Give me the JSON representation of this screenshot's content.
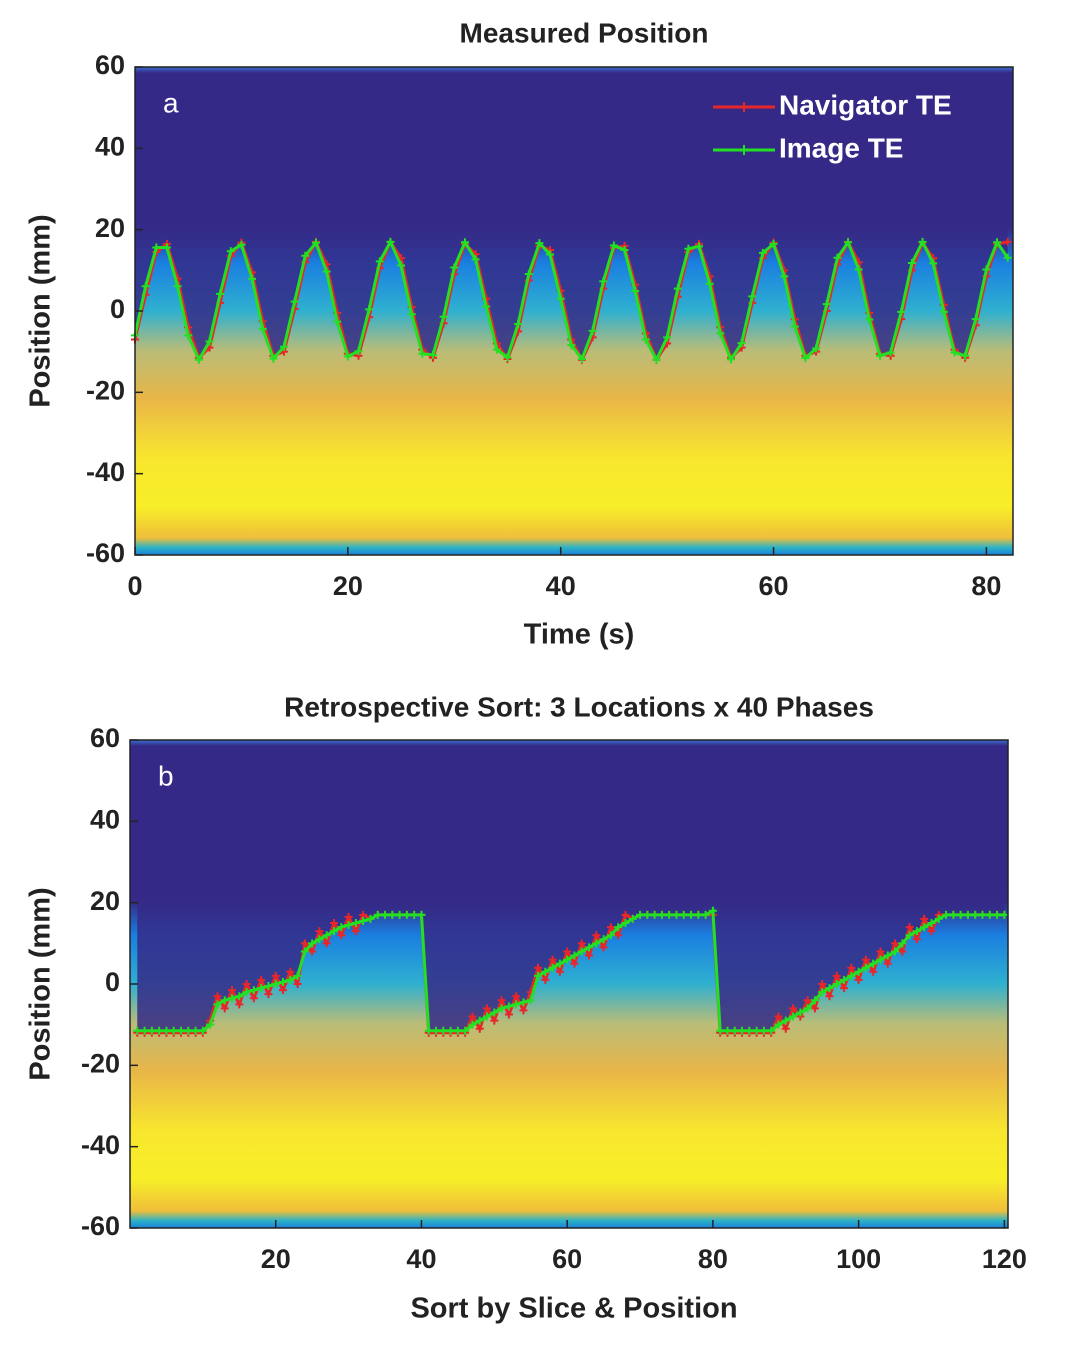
{
  "chart_data": [
    {
      "type": "line",
      "title": "Measured Position",
      "xlabel": "Time (s)",
      "ylabel": "Position (mm)",
      "annotation": "a",
      "x": [
        0,
        1,
        2,
        3,
        4,
        5,
        6,
        7,
        8,
        9,
        10,
        11,
        12,
        13,
        14,
        15,
        16,
        17,
        18,
        19,
        20,
        21,
        22,
        23,
        24,
        25,
        26,
        27,
        28,
        29,
        30,
        31,
        32,
        33,
        34,
        35,
        36,
        37,
        38,
        39,
        40,
        41,
        42,
        43,
        44,
        45,
        46,
        47,
        48,
        49,
        50,
        51,
        52,
        53,
        54,
        55,
        56,
        57,
        58,
        59,
        60,
        61,
        62,
        63,
        64,
        65,
        66,
        67,
        68,
        69,
        70,
        71,
        72,
        73,
        74,
        75,
        76,
        77,
        78,
        79,
        80,
        81,
        82
      ],
      "series": [
        {
          "name": "Navigator TE",
          "color": "#e8262a",
          "values": [
            -7,
            4,
            14.5,
            16.5,
            8,
            -4,
            -11.5,
            -9,
            2,
            13.5,
            16.8,
            9.5,
            -2.5,
            -11,
            -10,
            0.5,
            12,
            17,
            11.5,
            -0.5,
            -10.5,
            -11,
            -1.5,
            10.5,
            17,
            13,
            1,
            -9.5,
            -11.5,
            -3,
            9,
            16.5,
            14,
            3,
            -8,
            -11.8,
            -5,
            7.5,
            16,
            15,
            5,
            -7,
            -12,
            -6.5,
            5.5,
            15.5,
            16,
            6.5,
            -5.5,
            -12,
            -8,
            3.5,
            14.5,
            16.5,
            8.5,
            -4,
            -11.5,
            -9,
            2,
            13,
            16.8,
            10,
            -2,
            -11,
            -10,
            0,
            11.5,
            17,
            12,
            -0.5,
            -10.5,
            -11,
            -2,
            10,
            16.8,
            13,
            1.5,
            -9.5,
            -11.5,
            -3.5,
            8.5,
            16.5,
            17
          ]
        },
        {
          "name": "Image TE",
          "color": "#22e022",
          "values": [
            -6.0,
            6.1,
            15.6,
            15.6,
            6.1,
            -6.0,
            -12.0,
            -7.5,
            4.2,
            14.7,
            16.3,
            7.9,
            -4.4,
            -11.7,
            -8.8,
            2.3,
            13.6,
            16.8,
            9.7,
            -2.6,
            -11.2,
            -9.9,
            0.4,
            12.2,
            17.0,
            11.2,
            -0.8,
            -10.5,
            -10.8,
            -1.4,
            10.7,
            16.9,
            12.7,
            1.1,
            -9.5,
            -11.4,
            -3.2,
            9.1,
            16.7,
            13.9,
            3.0,
            -8.4,
            -11.8,
            -4.9,
            7.3,
            16.1,
            15.0,
            4.9,
            -7.0,
            -12.0,
            -6.5,
            5.5,
            15.3,
            15.9,
            6.7,
            -5.5,
            -11.9,
            -7.9,
            3.6,
            14.3,
            16.5,
            8.5,
            -3.8,
            -11.6,
            -9.2,
            1.7,
            13.1,
            16.9,
            10.2,
            -2.1,
            -11.0,
            -10.2,
            -0.2,
            11.8,
            17.0,
            11.7,
            -0.2,
            -10.2,
            -11.0,
            -2.0,
            10.2,
            16.9,
            13.1
          ]
        }
      ],
      "xlim": [
        0,
        82.5
      ],
      "xticks": [
        0,
        20,
        40,
        60,
        80
      ],
      "ylim": [
        -60,
        60
      ],
      "yticks": [
        -60,
        -40,
        -20,
        0,
        20,
        40,
        60
      ],
      "legend": "upper right",
      "grid": false
    },
    {
      "type": "line",
      "title": "Retrospective Sort: 3 Locations x 40 Phases",
      "xlabel": "Sort by Slice & Position",
      "ylabel": "Position (mm)",
      "annotation": "b",
      "x": [
        1,
        2,
        3,
        4,
        5,
        6,
        7,
        8,
        9,
        10,
        11,
        12,
        13,
        14,
        15,
        16,
        17,
        18,
        19,
        20,
        21,
        22,
        23,
        24,
        25,
        26,
        27,
        28,
        29,
        30,
        31,
        32,
        33,
        34,
        35,
        36,
        37,
        38,
        39,
        40,
        41,
        42,
        43,
        44,
        45,
        46,
        47,
        48,
        49,
        50,
        51,
        52,
        53,
        54,
        55,
        56,
        57,
        58,
        59,
        60,
        61,
        62,
        63,
        64,
        65,
        66,
        67,
        68,
        69,
        70,
        71,
        72,
        73,
        74,
        75,
        76,
        77,
        78,
        79,
        80,
        81,
        82,
        83,
        84,
        85,
        86,
        87,
        88,
        89,
        90,
        91,
        92,
        93,
        94,
        95,
        96,
        97,
        98,
        99,
        100,
        101,
        102,
        103,
        104,
        105,
        106,
        107,
        108,
        109,
        110,
        111,
        112,
        113,
        114,
        115,
        116,
        117,
        118,
        119,
        120
      ],
      "series": [
        {
          "name": "Navigator TE",
          "color": "#e8262a",
          "values": [
            -12,
            -12,
            -12,
            -12,
            -12,
            -12,
            -12,
            -12,
            -12,
            -12,
            -9,
            -3,
            -6,
            -1.5,
            -5,
            0,
            -3.5,
            1,
            -2.5,
            2,
            -1.5,
            3,
            0,
            10,
            8,
            13,
            10,
            15,
            12,
            16.5,
            13,
            17,
            16,
            17,
            17,
            17,
            17,
            17,
            17,
            17,
            -12,
            -12,
            -12,
            -12,
            -12,
            -12,
            -8,
            -11,
            -6,
            -9,
            -4,
            -7.5,
            -3,
            -6.5,
            -2,
            4,
            1,
            6,
            3,
            8,
            5,
            10,
            7,
            12,
            9,
            14,
            12,
            17,
            16,
            17,
            17,
            17,
            17,
            17,
            17,
            17,
            17,
            17,
            17,
            17,
            -12,
            -12,
            -12,
            -12,
            -12,
            -12,
            -12,
            -12,
            -8,
            -11,
            -6,
            -8,
            -4,
            -6,
            0,
            -3,
            2,
            -1,
            4,
            1,
            6,
            3,
            8,
            5,
            10,
            8,
            14,
            11,
            16,
            13,
            17,
            17,
            17,
            17,
            17,
            17,
            17,
            17,
            17,
            17
          ]
        },
        {
          "name": "Image TE",
          "color": "#22e022",
          "values": [
            -11.5,
            -11.5,
            -11.5,
            -11.5,
            -11.5,
            -11.5,
            -11.5,
            -11.5,
            -11.5,
            -11.5,
            -10,
            -5,
            -4,
            -3.5,
            -3,
            -2,
            -1.5,
            -1,
            -0.5,
            0,
            0.5,
            1,
            2,
            8,
            10,
            11,
            12,
            13,
            14,
            14.5,
            15,
            15.5,
            16,
            17,
            17,
            17,
            17,
            17,
            17,
            17,
            -11.5,
            -11.5,
            -11.5,
            -11.5,
            -11.5,
            -11.5,
            -10,
            -9,
            -8,
            -7,
            -6,
            -5.5,
            -5,
            -4.5,
            -4,
            2,
            3,
            4,
            5,
            6,
            7,
            8,
            9,
            10,
            11,
            12,
            14,
            15,
            16,
            17,
            17,
            17,
            17,
            17,
            17,
            17,
            17,
            17,
            17,
            18,
            -11.5,
            -11.5,
            -11.5,
            -11.5,
            -11.5,
            -11.5,
            -11.5,
            -11.5,
            -10,
            -9,
            -8,
            -7,
            -6,
            -4,
            -2,
            -1,
            0,
            1,
            2,
            3,
            4,
            5,
            6,
            7,
            8,
            10,
            12,
            13,
            14,
            15,
            16,
            17,
            17,
            17,
            17,
            17,
            17,
            17,
            17,
            17
          ]
        }
      ],
      "xlim": [
        0,
        120.5
      ],
      "xticks": [
        20,
        40,
        60,
        80,
        100,
        120
      ],
      "ylim": [
        -60,
        60
      ],
      "yticks": [
        -60,
        -40,
        -20,
        0,
        20,
        40,
        60
      ],
      "grid": false
    }
  ]
}
